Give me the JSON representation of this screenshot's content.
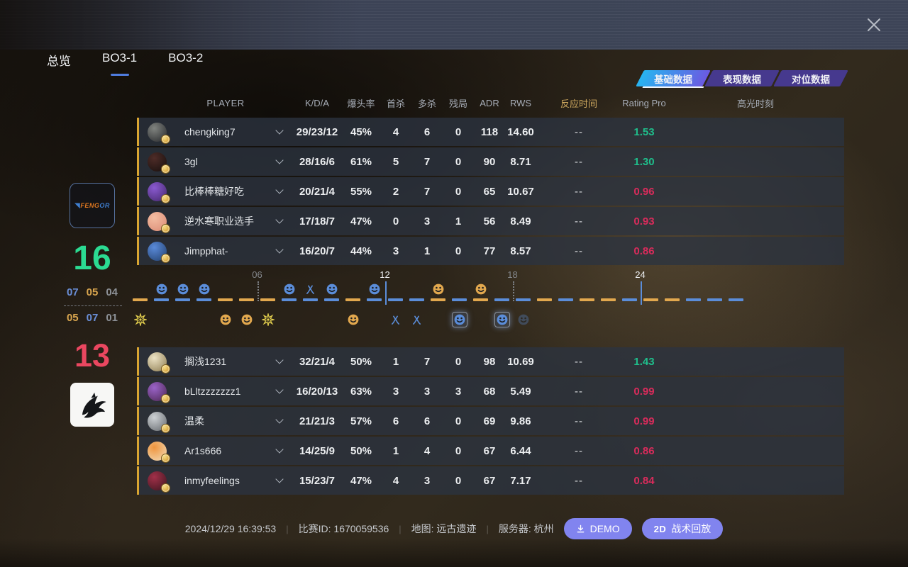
{
  "window": {
    "close": "✕"
  },
  "top_tabs": [
    {
      "label": "总览",
      "active": false
    },
    {
      "label": "BO3-1",
      "active": true
    },
    {
      "label": "BO3-2",
      "active": false
    }
  ],
  "data_tabs": [
    {
      "label": "基础数据",
      "active": true
    },
    {
      "label": "表现数据",
      "active": false
    },
    {
      "label": "对位数据",
      "active": false
    }
  ],
  "table_headers": [
    "PLAYER",
    "K/D/A",
    "爆头率",
    "首杀",
    "多杀",
    "残局",
    "ADR",
    "RWS",
    "反应时间",
    "Rating Pro",
    "高光时刻"
  ],
  "colors": {
    "blue": "#5b8dd9",
    "orange": "#e2a84e",
    "yellow": "#e3cf4e",
    "good": "#1fbe8b",
    "bad": "#d92b5b",
    "row_accent": "#d9a531"
  },
  "teams": [
    {
      "logo_main": "FENG",
      "logo_accent": "OR",
      "score": "16",
      "halves": [
        {
          "value": "07",
          "type": "ct"
        },
        {
          "value": "05",
          "type": "t"
        },
        {
          "value": "04",
          "type": "ot"
        }
      ],
      "players": [
        {
          "name": "chengking7",
          "kda": "29/23/12",
          "hs": "45%",
          "fk": "4",
          "mk": "6",
          "cl": "0",
          "adr": "118",
          "rws": "14.60",
          "react": "--",
          "rating": "1.53",
          "trend": "up",
          "avatar": [
            "#80837f",
            "#26282b"
          ]
        },
        {
          "name": "3gl",
          "kda": "28/16/6",
          "hs": "61%",
          "fk": "5",
          "mk": "7",
          "cl": "0",
          "adr": "90",
          "rws": "8.71",
          "react": "--",
          "rating": "1.30",
          "trend": "up",
          "avatar": [
            "#4e2c28",
            "#160f0d"
          ]
        },
        {
          "name": "比棒棒糖好吃",
          "kda": "20/21/4",
          "hs": "55%",
          "fk": "2",
          "mk": "7",
          "cl": "0",
          "adr": "65",
          "rws": "10.67",
          "react": "--",
          "rating": "0.96",
          "trend": "down",
          "avatar": [
            "#8a5ad0",
            "#44276b"
          ]
        },
        {
          "name": "逆水寒职业选手",
          "kda": "17/18/7",
          "hs": "47%",
          "fk": "0",
          "mk": "3",
          "cl": "1",
          "adr": "56",
          "rws": "8.49",
          "react": "--",
          "rating": "0.93",
          "trend": "down",
          "avatar": [
            "#f4bda2",
            "#da8a74"
          ]
        },
        {
          "name": "Jimpphat-",
          "kda": "16/20/7",
          "hs": "44%",
          "fk": "3",
          "mk": "1",
          "cl": "0",
          "adr": "77",
          "rws": "8.57",
          "react": "--",
          "rating": "0.86",
          "trend": "down",
          "avatar": [
            "#5a8ad8",
            "#22406e"
          ]
        }
      ]
    },
    {
      "logo_main": "",
      "logo_accent": "",
      "score": "13",
      "halves": [
        {
          "value": "05",
          "type": "t"
        },
        {
          "value": "07",
          "type": "ct"
        },
        {
          "value": "01",
          "type": "ot"
        }
      ],
      "players": [
        {
          "name": "搁浅1231",
          "kda": "32/21/4",
          "hs": "50%",
          "fk": "1",
          "mk": "7",
          "cl": "0",
          "adr": "98",
          "rws": "10.69",
          "react": "--",
          "rating": "1.43",
          "trend": "up",
          "avatar": [
            "#ece2c4",
            "#8d7c50"
          ]
        },
        {
          "name": "bLltzzzzzzz1",
          "kda": "16/20/13",
          "hs": "63%",
          "fk": "3",
          "mk": "3",
          "cl": "3",
          "adr": "68",
          "rws": "5.49",
          "react": "--",
          "rating": "0.99",
          "trend": "down",
          "avatar": [
            "#9a63c8",
            "#4c2752"
          ]
        },
        {
          "name": "温柔",
          "kda": "21/21/3",
          "hs": "57%",
          "fk": "6",
          "mk": "6",
          "cl": "0",
          "adr": "69",
          "rws": "9.86",
          "react": "--",
          "rating": "0.99",
          "trend": "down",
          "avatar": [
            "#cdd1d4",
            "#63676c"
          ]
        },
        {
          "name": "Ar1s666",
          "kda": "14/25/9",
          "hs": "50%",
          "fk": "1",
          "mk": "4",
          "cl": "0",
          "adr": "67",
          "rws": "6.44",
          "react": "--",
          "rating": "0.86",
          "trend": "down",
          "avatar": [
            "#ef953e",
            "#f2ddba"
          ]
        },
        {
          "name": "inmyfeelings",
          "kda": "15/23/7",
          "hs": "47%",
          "fk": "4",
          "mk": "3",
          "cl": "0",
          "adr": "67",
          "rws": "7.17",
          "react": "--",
          "rating": "0.84",
          "trend": "down",
          "avatar": [
            "#a23049",
            "#3c161f"
          ]
        }
      ]
    }
  ],
  "timeline": {
    "markers": [
      {
        "round": 6,
        "label": "06",
        "major": false
      },
      {
        "round": 12,
        "label": "12",
        "major": true
      },
      {
        "round": 18,
        "label": "18",
        "major": false
      },
      {
        "round": 24,
        "label": "24",
        "major": true
      }
    ],
    "rounds": [
      {
        "side": "t",
        "icon": "explode",
        "pos": "bot"
      },
      {
        "side": "ct",
        "icon": "elim",
        "pos": "top"
      },
      {
        "side": "ct",
        "icon": "elim",
        "pos": "top"
      },
      {
        "side": "ct",
        "icon": "elim",
        "pos": "top"
      },
      {
        "side": "t",
        "icon": "elim",
        "pos": "bot"
      },
      {
        "side": "t",
        "icon": "elim",
        "pos": "bot"
      },
      {
        "side": "t",
        "icon": "explode",
        "pos": "bot"
      },
      {
        "side": "ct",
        "icon": "elim",
        "pos": "top"
      },
      {
        "side": "ct",
        "icon": "defuse",
        "pos": "top"
      },
      {
        "side": "ct",
        "icon": "elim",
        "pos": "top"
      },
      {
        "side": "t",
        "icon": "elim",
        "pos": "bot"
      },
      {
        "side": "ct",
        "icon": "elim",
        "pos": "top"
      },
      {
        "side": "ct",
        "icon": "defuse",
        "pos": "bot"
      },
      {
        "side": "ct",
        "icon": "defuse",
        "pos": "bot"
      },
      {
        "side": "t",
        "icon": "elim",
        "pos": "top"
      },
      {
        "side": "ct",
        "icon": "elim",
        "pos": "bot",
        "state": "hl"
      },
      {
        "side": "t",
        "icon": "elim",
        "pos": "top"
      },
      {
        "side": "ct",
        "icon": "elim",
        "pos": "bot",
        "state": "hl"
      },
      {
        "side": "ct",
        "icon": "elim",
        "pos": "bot",
        "state": "dim"
      },
      {
        "side": "t"
      },
      {
        "side": "ct"
      },
      {
        "side": "t"
      },
      {
        "side": "t"
      },
      {
        "side": "ct"
      },
      {
        "side": "t"
      },
      {
        "side": "t"
      },
      {
        "side": "ct"
      },
      {
        "side": "ct"
      },
      {
        "side": "ct"
      }
    ]
  },
  "footer": {
    "time": "2024/12/29 16:39:53",
    "match_id": "比赛ID: 1670059536",
    "map": "地图: 远古遗迹",
    "server": "服务器: 杭州",
    "demo_label": "DEMO",
    "replay_badge": "2D",
    "replay_label": "战术回放"
  }
}
